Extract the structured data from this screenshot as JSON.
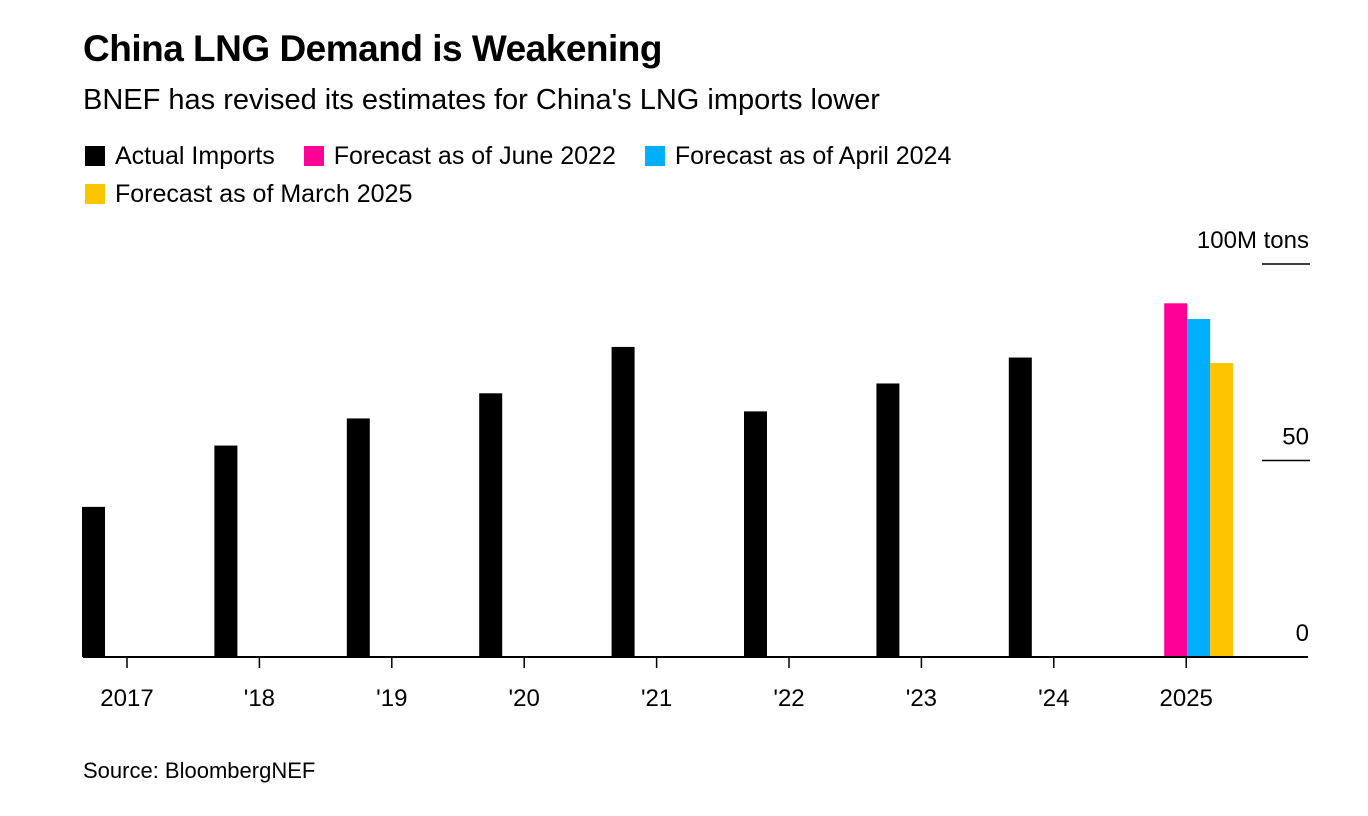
{
  "title": "China LNG Demand is Weakening",
  "subtitle": "BNEF has revised its estimates for China's LNG imports lower",
  "source": "Source: BloombergNEF",
  "legend": [
    {
      "label": "Actual Imports",
      "color": "#000000"
    },
    {
      "label": "Forecast as of June 2022",
      "color": "#ff0096"
    },
    {
      "label": "Forecast as of April 2024",
      "color": "#00aeff"
    },
    {
      "label": "Forecast as of March 2025",
      "color": "#ffc400"
    }
  ],
  "chart_data": {
    "type": "bar",
    "title": "China LNG Demand is Weakening",
    "subtitle": "BNEF has revised its estimates for China's LNG imports lower",
    "xlabel": "",
    "ylabel": "100M tons",
    "unit_label": "100M tons",
    "ylim": [
      0,
      100
    ],
    "yticks": [
      0,
      50,
      100
    ],
    "ytick_labels": [
      "0",
      "50",
      "100M tons"
    ],
    "y_axis_side": "right",
    "grid": true,
    "categories": [
      "2017",
      "'18",
      "'19",
      "'20",
      "'21",
      "'22",
      "'23",
      "'24",
      "2025"
    ],
    "series": [
      {
        "name": "Actual Imports",
        "color": "#000000",
        "values": [
          38.2,
          53.8,
          60.7,
          67.1,
          78.9,
          62.5,
          69.6,
          76.2,
          null
        ]
      },
      {
        "name": "Forecast as of June 2022",
        "color": "#ff0096",
        "values": [
          null,
          null,
          null,
          null,
          null,
          null,
          null,
          null,
          90.0
        ]
      },
      {
        "name": "Forecast as of April 2024",
        "color": "#00aeff",
        "values": [
          null,
          null,
          null,
          null,
          null,
          null,
          null,
          null,
          86.0
        ]
      },
      {
        "name": "Forecast as of March 2025",
        "color": "#ffc400",
        "values": [
          null,
          null,
          null,
          null,
          null,
          null,
          null,
          null,
          74.8
        ]
      }
    ],
    "legend_position": "top-left"
  }
}
